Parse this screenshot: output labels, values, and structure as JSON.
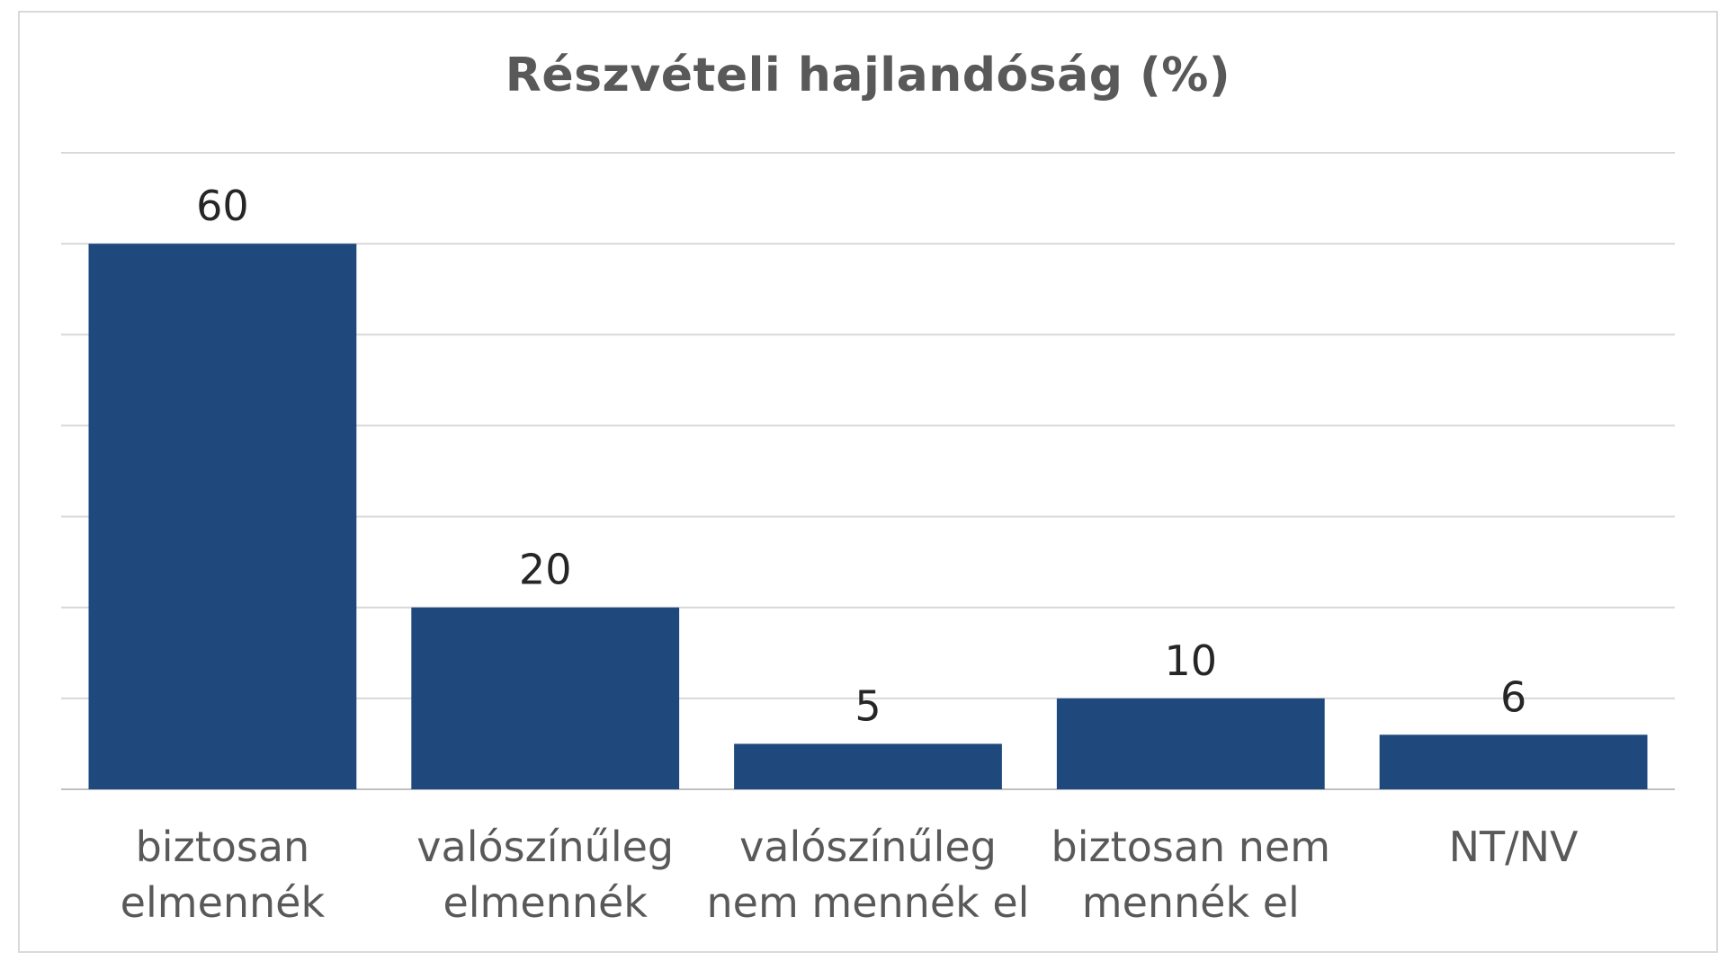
{
  "chart_data": {
    "type": "bar",
    "title": "Részvételi hajlandóság (%)",
    "categories": [
      [
        "biztosan",
        "elmennék"
      ],
      [
        "valószínűleg",
        "elmennék"
      ],
      [
        "valószínűleg",
        "nem mennék el"
      ],
      [
        "biztosan nem",
        "mennék el"
      ],
      [
        "NT/NV"
      ]
    ],
    "values": [
      60,
      20,
      5,
      10,
      6
    ],
    "value_labels": [
      "60",
      "20",
      "5",
      "10",
      "6"
    ],
    "ylim": [
      0,
      70
    ],
    "grid": true,
    "bar_color": "#1f497d"
  }
}
